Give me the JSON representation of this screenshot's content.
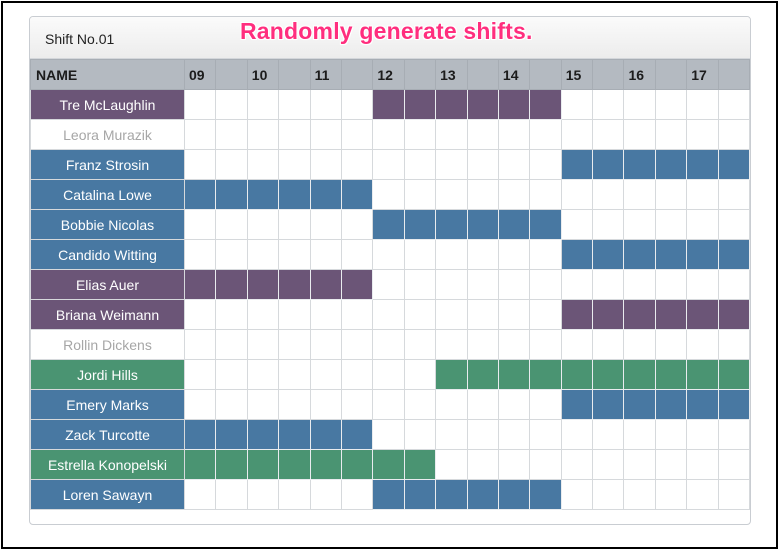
{
  "panel": {
    "title": "Shift No.01"
  },
  "banner": "Randomly generate shifts.",
  "colors": {
    "purple": "#6b5577",
    "blue": "#4878a2",
    "green": "#4a9472",
    "none": "#ffffff"
  },
  "header": {
    "name_label": "NAME",
    "hours": [
      "09",
      "",
      "10",
      "",
      "11",
      "",
      "12",
      "",
      "13",
      "",
      "14",
      "",
      "15",
      "",
      "16",
      "",
      "17",
      ""
    ]
  },
  "rows": [
    {
      "name": "Tre McLaughlin",
      "color": "purple",
      "start": 6,
      "end": 12
    },
    {
      "name": "Leora Murazik",
      "color": "none",
      "start": 0,
      "end": 0
    },
    {
      "name": "Franz Strosin",
      "color": "blue",
      "start": 12,
      "end": 18
    },
    {
      "name": "Catalina Lowe",
      "color": "blue",
      "start": 0,
      "end": 6
    },
    {
      "name": "Bobbie Nicolas",
      "color": "blue",
      "start": 6,
      "end": 12
    },
    {
      "name": "Candido Witting",
      "color": "blue",
      "start": 12,
      "end": 18
    },
    {
      "name": "Elias Auer",
      "color": "purple",
      "start": 0,
      "end": 6
    },
    {
      "name": "Briana Weimann",
      "color": "purple",
      "start": 12,
      "end": 18
    },
    {
      "name": "Rollin Dickens",
      "color": "none",
      "start": 0,
      "end": 0
    },
    {
      "name": "Jordi Hills",
      "color": "green",
      "start": 8,
      "end": 18
    },
    {
      "name": "Emery Marks",
      "color": "blue",
      "start": 12,
      "end": 18
    },
    {
      "name": "Zack Turcotte",
      "color": "blue",
      "start": 0,
      "end": 6
    },
    {
      "name": "Estrella Konopelski",
      "color": "green",
      "start": 0,
      "end": 8
    },
    {
      "name": "Loren Sawayn",
      "color": "blue",
      "start": 6,
      "end": 12
    }
  ]
}
